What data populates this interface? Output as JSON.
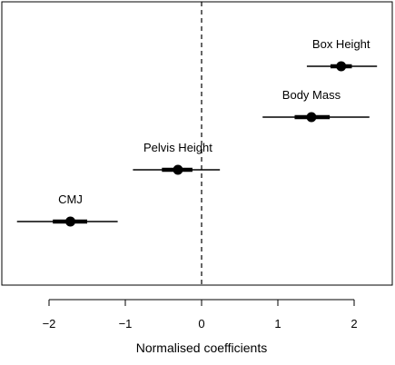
{
  "chart_data": {
    "type": "scatter",
    "title": "",
    "xlabel": "Normalised coefficients",
    "ylabel": "",
    "xlim": [
      -2.5,
      2.5
    ],
    "xticks": [
      -2,
      -1,
      0,
      1,
      2
    ],
    "xtick_labels": [
      "−2",
      "−1",
      "0",
      "1",
      "2"
    ],
    "grid": false,
    "reference_line": {
      "x": 0,
      "style": "dashed"
    },
    "points": [
      {
        "label": "Box Height",
        "estimate": 1.83,
        "inner_interval": [
          1.69,
          1.97
        ],
        "outer_interval": [
          1.38,
          2.3
        ]
      },
      {
        "label": "Body Mass",
        "estimate": 1.44,
        "inner_interval": [
          1.22,
          1.68
        ],
        "outer_interval": [
          0.8,
          2.2
        ]
      },
      {
        "label": "Pelvis Height",
        "estimate": -0.31,
        "inner_interval": [
          -0.52,
          -0.12
        ],
        "outer_interval": [
          -0.9,
          0.24
        ]
      },
      {
        "label": "CMJ",
        "estimate": -1.72,
        "inner_interval": [
          -1.95,
          -1.5
        ],
        "outer_interval": [
          -2.42,
          -1.1
        ]
      }
    ]
  }
}
